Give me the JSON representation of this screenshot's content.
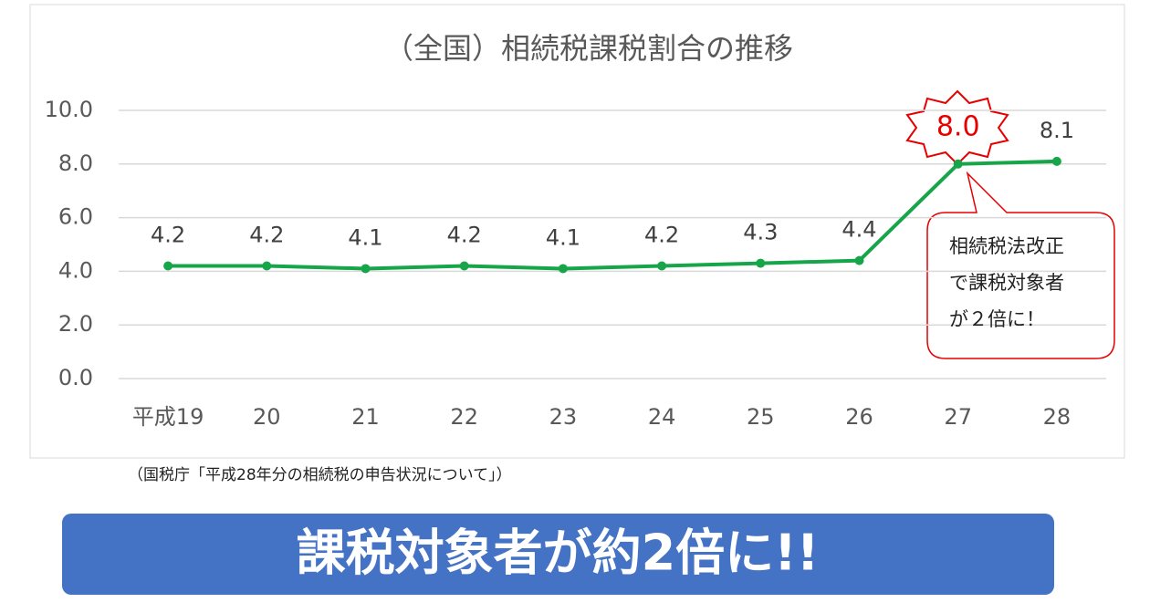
{
  "chart_data": {
    "type": "line",
    "title": "（全国）相続税課税割合の推移",
    "categories": [
      "平成19",
      "20",
      "21",
      "22",
      "23",
      "24",
      "25",
      "26",
      "27",
      "28"
    ],
    "series": [
      {
        "color": "#17a54a",
        "values": [
          4.2,
          4.2,
          4.1,
          4.2,
          4.1,
          4.2,
          4.3,
          4.4,
          8.0,
          8.1
        ],
        "value_labels": [
          "4.2",
          "4.2",
          "4.1",
          "4.2",
          "4.1",
          "4.2",
          "4.3",
          "4.4",
          "8.0",
          "8.1"
        ]
      }
    ],
    "ylim": [
      0,
      10
    ],
    "yticks": [
      {
        "value": 0,
        "label": "0.0"
      },
      {
        "value": 2,
        "label": "2.0"
      },
      {
        "value": 4,
        "label": "4.0"
      },
      {
        "value": 6,
        "label": "6.0"
      },
      {
        "value": 8,
        "label": "8.0"
      },
      {
        "value": 10,
        "label": "10.0"
      }
    ],
    "grid": true,
    "highlight": {
      "index": 8,
      "color": "#e60000"
    },
    "callout": [
      "相続税法改正",
      "で課税対象者",
      "が２倍に！"
    ],
    "source": "（国税庁「平成28年分の相続税の申告状況について」）",
    "banner": "課税対象者が約2倍に!!"
  }
}
